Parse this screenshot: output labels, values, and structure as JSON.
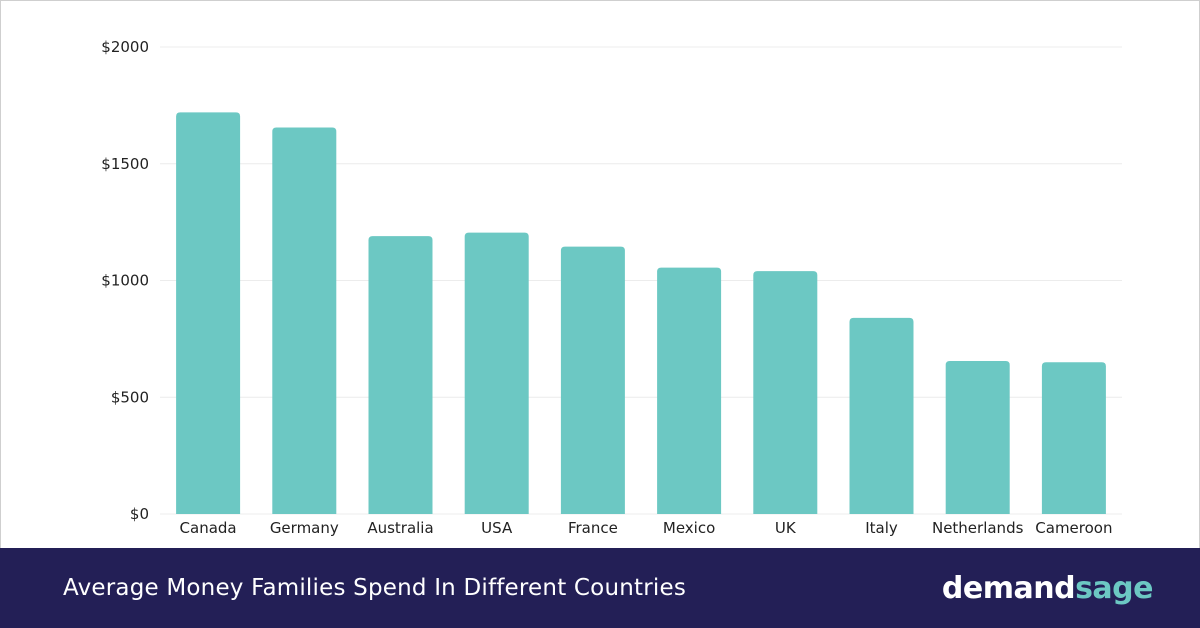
{
  "colors": {
    "bar": "#6cc8c3",
    "footer_bg": "#231f56",
    "grid": "#ececec",
    "axis_text": "#222222",
    "logo_main": "#ffffff",
    "logo_accent": "#6cc8c3"
  },
  "footer": {
    "title": "Average Money Families Spend In Different Countries",
    "logo_part1": "demand",
    "logo_part2": "sage"
  },
  "chart_data": {
    "type": "bar",
    "title": "Average Money Families Spend In Different Countries",
    "xlabel": "",
    "ylabel": "",
    "categories": [
      "Canada",
      "Germany",
      "Australia",
      "USA",
      "France",
      "Mexico",
      "UK",
      "Italy",
      "Netherlands",
      "Cameroon"
    ],
    "values": [
      1720,
      1655,
      1190,
      1205,
      1145,
      1055,
      1040,
      840,
      655,
      650
    ],
    "ylim": [
      0,
      2000
    ],
    "yticks": [
      0,
      500,
      1000,
      1500,
      2000
    ],
    "ytick_labels": [
      "$0",
      "$500",
      "$1000",
      "$1500",
      "$2000"
    ],
    "grid": true,
    "legend": "none"
  }
}
